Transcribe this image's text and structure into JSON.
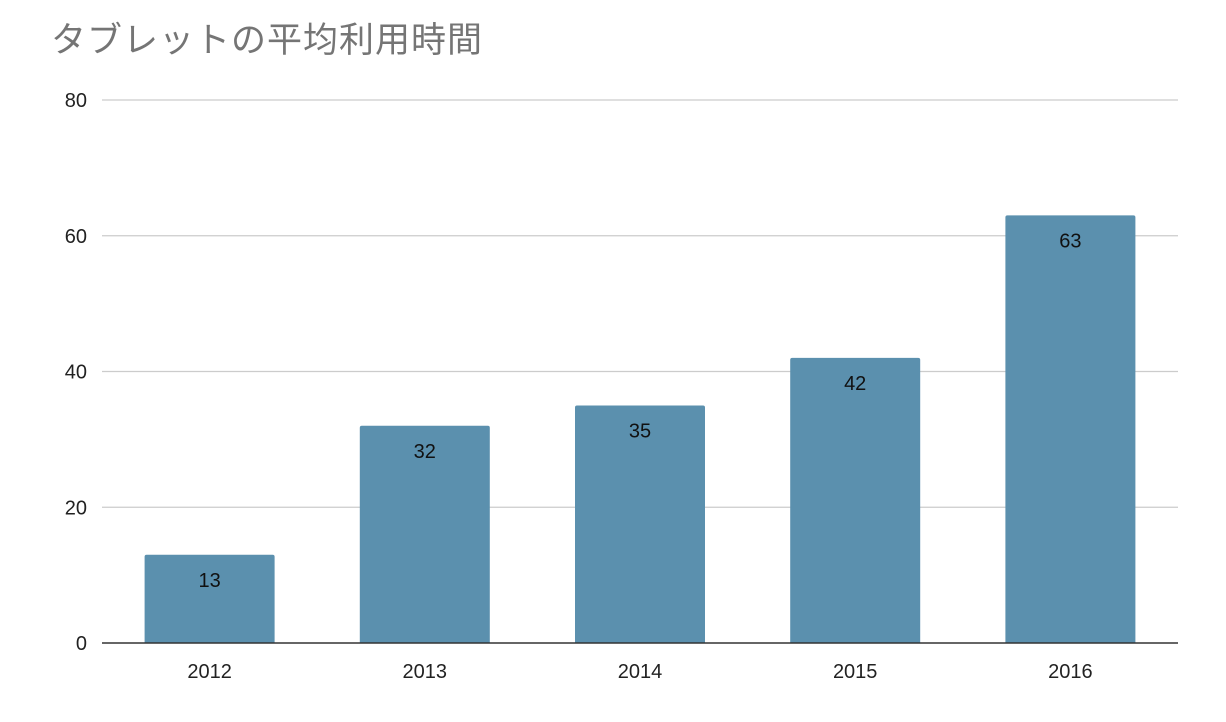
{
  "colors": {
    "bar": "#5b90ae",
    "grid": "#cccccc",
    "axis": "#333333",
    "title": "#757575"
  },
  "chart_data": {
    "type": "bar",
    "title": "タブレットの平均利用時間",
    "xlabel": "",
    "ylabel": "",
    "categories": [
      "2012",
      "2013",
      "2014",
      "2015",
      "2016"
    ],
    "values": [
      13,
      32,
      35,
      42,
      63
    ],
    "data_labels": [
      "13",
      "32",
      "35",
      "42",
      "63"
    ],
    "ylim": [
      0,
      80
    ],
    "yticks": [
      0,
      20,
      40,
      60,
      80
    ],
    "grid": true,
    "legend": "none"
  }
}
